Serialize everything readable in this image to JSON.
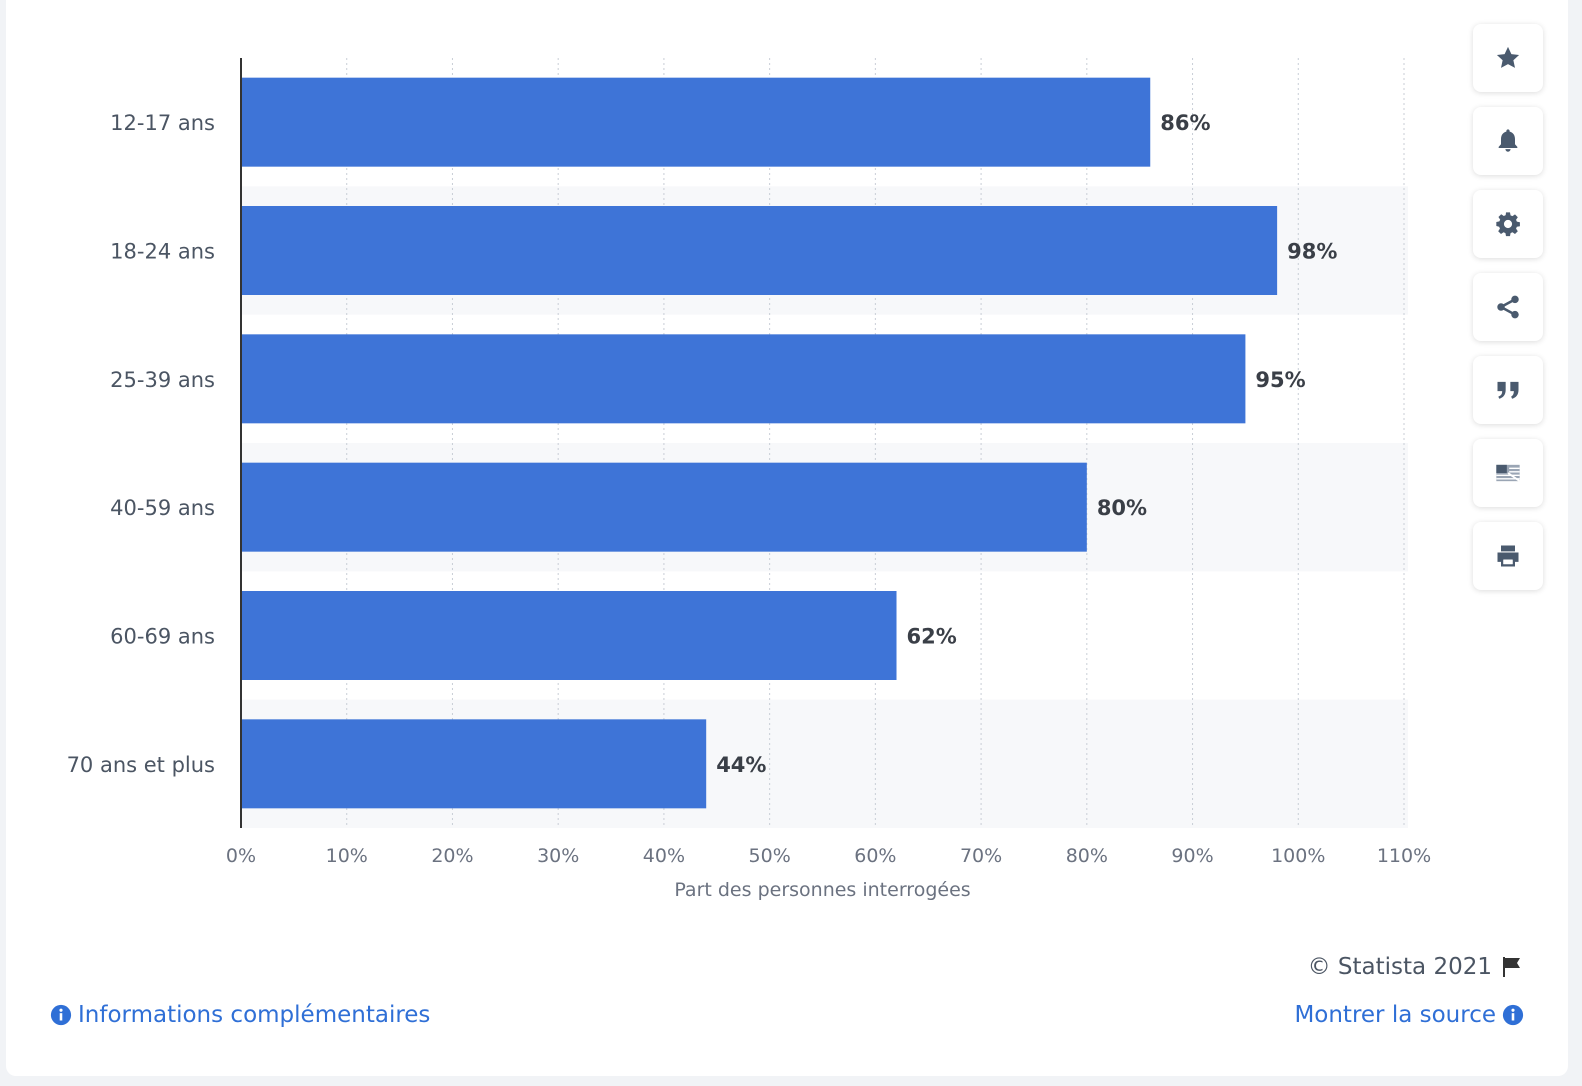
{
  "chart_data": {
    "type": "bar",
    "orientation": "horizontal",
    "categories": [
      "12-17 ans",
      "18-24 ans",
      "25-39 ans",
      "40-59 ans",
      "60-69 ans",
      "70 ans et plus"
    ],
    "values": [
      86,
      98,
      95,
      80,
      62,
      44
    ],
    "value_labels": [
      "86%",
      "98%",
      "95%",
      "80%",
      "62%",
      "44%"
    ],
    "xlabel": "Part des personnes interrogées",
    "ylabel": "",
    "xlim": [
      0,
      110
    ],
    "xticks": [
      "0%",
      "10%",
      "20%",
      "30%",
      "40%",
      "50%",
      "60%",
      "70%",
      "80%",
      "90%",
      "100%",
      "110%"
    ],
    "grid": true,
    "bar_color": "#3e74d7"
  },
  "footer": {
    "copyright": "© Statista 2021",
    "more_info": "Informations complémentaires",
    "show_source": "Montrer la source"
  },
  "toolbar": {
    "icons": [
      "star-icon",
      "bell-icon",
      "gear-icon",
      "share-icon",
      "quote-icon",
      "flag-grid-icon",
      "print-icon"
    ]
  },
  "colors": {
    "accent": "#2f6fd6",
    "icon": "#4a5a6e"
  }
}
